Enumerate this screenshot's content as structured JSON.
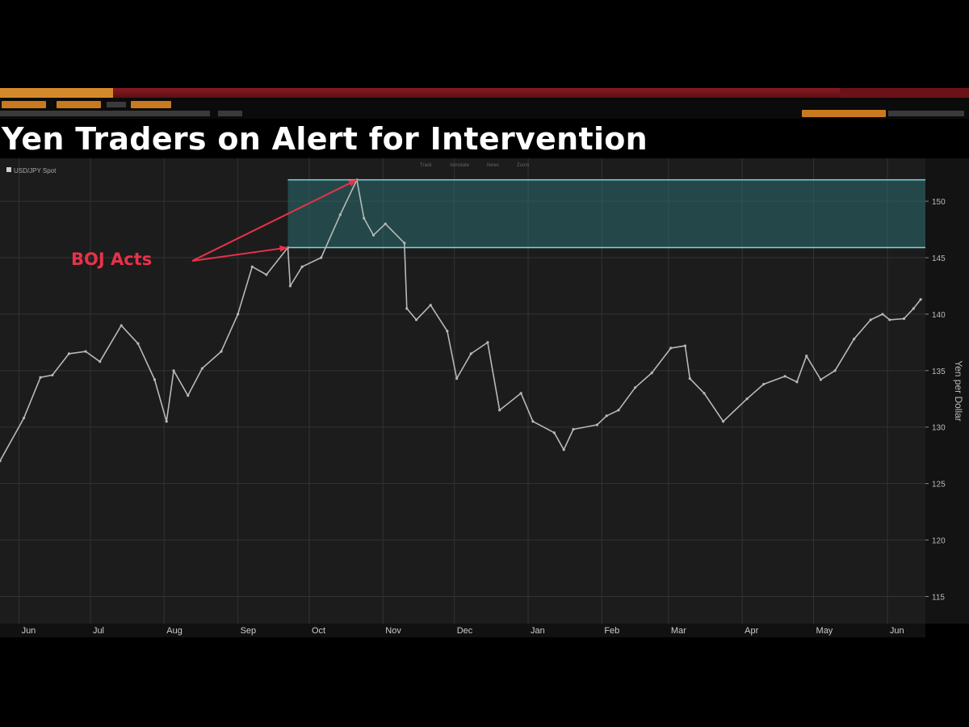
{
  "chart_data": {
    "type": "line",
    "title": "Yen Traders on Alert for Intervention",
    "legend": [
      "USD/JPY Spot"
    ],
    "legend_placement": "top-left",
    "chart_menu": [
      "Track",
      "Annotate",
      "News",
      "Zoom"
    ],
    "ylabel": "Yen per Dollar",
    "ylim": [
      112.6,
      153.8
    ],
    "yticks": [
      115,
      120,
      125,
      130,
      135,
      140,
      145,
      150
    ],
    "ytick_labels": [
      "115",
      "120",
      "125",
      "130",
      "135",
      "140",
      "145",
      "150"
    ],
    "xlim": [
      "2022-05-24",
      "2023-06-17"
    ],
    "xticks": [
      {
        "date": "2022-06-01",
        "label": "Jun"
      },
      {
        "date": "2022-07-01",
        "label": "Jul"
      },
      {
        "date": "2022-08-01",
        "label": "Aug"
      },
      {
        "date": "2022-09-01",
        "label": "Sep"
      },
      {
        "date": "2022-10-01",
        "label": "Oct"
      },
      {
        "date": "2022-11-01",
        "label": "Nov"
      },
      {
        "date": "2022-12-01",
        "label": "Dec"
      },
      {
        "date": "2023-01-01",
        "label": "Jan"
      },
      {
        "date": "2023-02-01",
        "label": "Feb"
      },
      {
        "date": "2023-03-01",
        "label": "Mar"
      },
      {
        "date": "2023-04-01",
        "label": "Apr"
      },
      {
        "date": "2023-05-01",
        "label": "May"
      },
      {
        "date": "2023-06-01",
        "label": "Jun"
      }
    ],
    "grid": true,
    "series": [
      {
        "name": "USD/JPY Spot",
        "color": "#b8b8b8",
        "points": [
          {
            "x": "2022-05-24",
            "y": 127.0
          },
          {
            "x": "2022-06-03",
            "y": 130.8
          },
          {
            "x": "2022-06-10",
            "y": 134.4
          },
          {
            "x": "2022-06-15",
            "y": 134.6
          },
          {
            "x": "2022-06-22",
            "y": 136.5
          },
          {
            "x": "2022-06-29",
            "y": 136.7
          },
          {
            "x": "2022-07-05",
            "y": 135.8
          },
          {
            "x": "2022-07-14",
            "y": 139.0
          },
          {
            "x": "2022-07-21",
            "y": 137.4
          },
          {
            "x": "2022-07-28",
            "y": 134.2
          },
          {
            "x": "2022-08-02",
            "y": 130.5
          },
          {
            "x": "2022-08-05",
            "y": 135.0
          },
          {
            "x": "2022-08-11",
            "y": 132.8
          },
          {
            "x": "2022-08-17",
            "y": 135.2
          },
          {
            "x": "2022-08-25",
            "y": 136.7
          },
          {
            "x": "2022-09-01",
            "y": 140.0
          },
          {
            "x": "2022-09-07",
            "y": 144.2
          },
          {
            "x": "2022-09-13",
            "y": 143.5
          },
          {
            "x": "2022-09-22",
            "y": 145.9
          },
          {
            "x": "2022-09-23",
            "y": 142.5
          },
          {
            "x": "2022-09-28",
            "y": 144.2
          },
          {
            "x": "2022-10-06",
            "y": 145.0
          },
          {
            "x": "2022-10-14",
            "y": 148.8
          },
          {
            "x": "2022-10-21",
            "y": 151.9
          },
          {
            "x": "2022-10-24",
            "y": 148.5
          },
          {
            "x": "2022-10-28",
            "y": 147.0
          },
          {
            "x": "2022-11-02",
            "y": 148.0
          },
          {
            "x": "2022-11-10",
            "y": 146.3
          },
          {
            "x": "2022-11-11",
            "y": 140.5
          },
          {
            "x": "2022-11-15",
            "y": 139.5
          },
          {
            "x": "2022-11-21",
            "y": 140.8
          },
          {
            "x": "2022-11-28",
            "y": 138.5
          },
          {
            "x": "2022-12-02",
            "y": 134.3
          },
          {
            "x": "2022-12-08",
            "y": 136.5
          },
          {
            "x": "2022-12-15",
            "y": 137.5
          },
          {
            "x": "2022-12-20",
            "y": 131.5
          },
          {
            "x": "2022-12-29",
            "y": 133.0
          },
          {
            "x": "2023-01-03",
            "y": 130.5
          },
          {
            "x": "2023-01-12",
            "y": 129.5
          },
          {
            "x": "2023-01-16",
            "y": 128.0
          },
          {
            "x": "2023-01-20",
            "y": 129.8
          },
          {
            "x": "2023-01-30",
            "y": 130.2
          },
          {
            "x": "2023-02-03",
            "y": 131.0
          },
          {
            "x": "2023-02-08",
            "y": 131.5
          },
          {
            "x": "2023-02-15",
            "y": 133.5
          },
          {
            "x": "2023-02-22",
            "y": 134.8
          },
          {
            "x": "2023-03-02",
            "y": 137.0
          },
          {
            "x": "2023-03-08",
            "y": 137.2
          },
          {
            "x": "2023-03-10",
            "y": 134.3
          },
          {
            "x": "2023-03-16",
            "y": 133.0
          },
          {
            "x": "2023-03-24",
            "y": 130.5
          },
          {
            "x": "2023-04-03",
            "y": 132.5
          },
          {
            "x": "2023-04-10",
            "y": 133.8
          },
          {
            "x": "2023-04-19",
            "y": 134.5
          },
          {
            "x": "2023-04-24",
            "y": 134.0
          },
          {
            "x": "2023-04-28",
            "y": 136.3
          },
          {
            "x": "2023-05-04",
            "y": 134.2
          },
          {
            "x": "2023-05-10",
            "y": 135.0
          },
          {
            "x": "2023-05-18",
            "y": 137.8
          },
          {
            "x": "2023-05-25",
            "y": 139.5
          },
          {
            "x": "2023-05-30",
            "y": 140.0
          },
          {
            "x": "2023-06-02",
            "y": 139.5
          },
          {
            "x": "2023-06-08",
            "y": 139.6
          },
          {
            "x": "2023-06-12",
            "y": 140.5
          },
          {
            "x": "2023-06-15",
            "y": 141.3
          }
        ]
      }
    ],
    "highlight_band": {
      "y_min": 145.9,
      "y_max": 151.9,
      "x_start": "2022-09-22"
    },
    "annotations": [
      {
        "text": "BOJ Acts",
        "color": "#e8324a",
        "points_to": [
          {
            "x": "2022-09-22",
            "y": 145.9
          },
          {
            "x": "2022-10-21",
            "y": 151.9
          }
        ]
      }
    ]
  }
}
